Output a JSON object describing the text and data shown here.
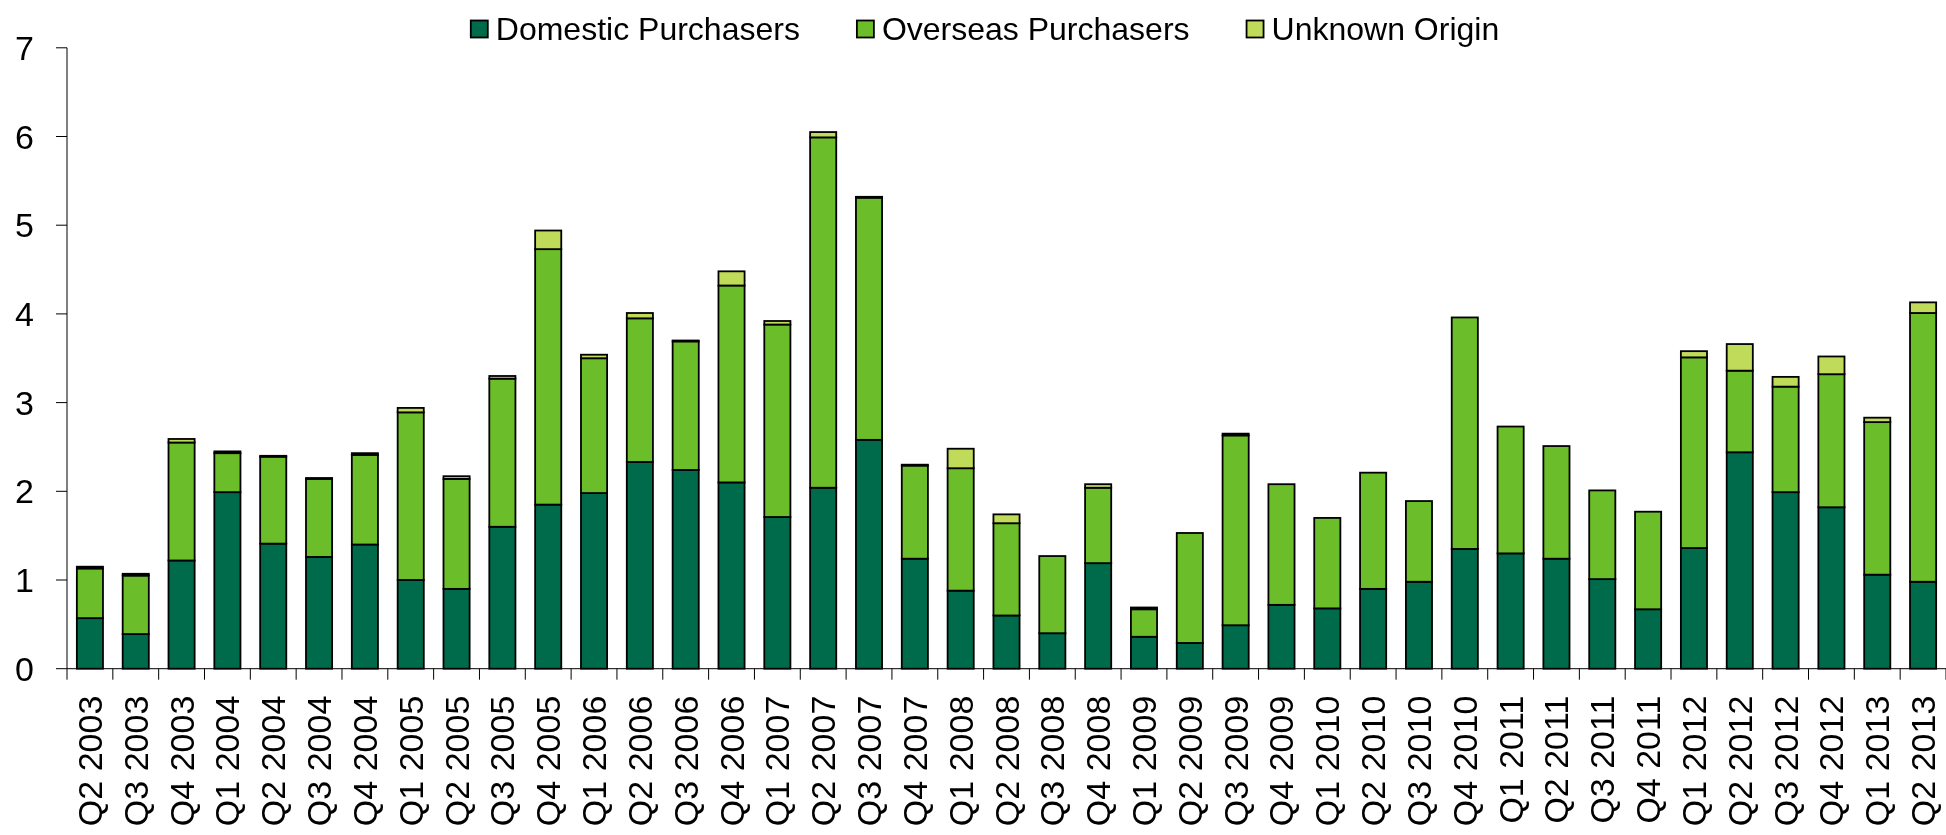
{
  "chart_data": {
    "type": "bar",
    "stacked": true,
    "legend": "top",
    "categories": [
      "Q2 2003",
      "Q3 2003",
      "Q4 2003",
      "Q1 2004",
      "Q2 2004",
      "Q3 2004",
      "Q4 2004",
      "Q1 2005",
      "Q2 2005",
      "Q3 2005",
      "Q4 2005",
      "Q1 2006",
      "Q2 2006",
      "Q3 2006",
      "Q4 2006",
      "Q1 2007",
      "Q2 2007",
      "Q3 2007",
      "Q4 2007",
      "Q1 2008",
      "Q2 2008",
      "Q3 2008",
      "Q4 2008",
      "Q1 2009",
      "Q2 2009",
      "Q3 2009",
      "Q4 2009",
      "Q1 2010",
      "Q2 2010",
      "Q3 2010",
      "Q4 2010",
      "Q1 2011",
      "Q2 2011",
      "Q3 2011",
      "Q4 2011",
      "Q1 2012",
      "Q2 2012",
      "Q3 2012",
      "Q4 2012",
      "Q1 2013",
      "Q2 2013"
    ],
    "series": [
      {
        "name": "Domestic Purchasers",
        "color": "#006b4a",
        "values": [
          0.57,
          0.39,
          1.22,
          1.99,
          1.41,
          1.26,
          1.4,
          1.0,
          0.9,
          1.6,
          1.85,
          1.98,
          2.33,
          2.24,
          2.1,
          1.71,
          2.04,
          2.58,
          1.24,
          0.88,
          0.6,
          0.4,
          1.19,
          0.36,
          0.29,
          0.49,
          0.72,
          0.68,
          0.9,
          0.98,
          1.35,
          1.3,
          1.24,
          1.01,
          0.67,
          1.36,
          2.44,
          1.99,
          1.82,
          1.06,
          0.98
        ]
      },
      {
        "name": "Overseas Purchasers",
        "color": "#6bbe29",
        "values": [
          0.56,
          0.66,
          1.33,
          0.44,
          0.98,
          0.88,
          1.01,
          1.89,
          1.24,
          1.67,
          2.88,
          1.52,
          1.62,
          1.45,
          2.22,
          2.17,
          3.95,
          2.73,
          1.05,
          1.38,
          1.04,
          0.87,
          0.85,
          0.31,
          1.24,
          2.14,
          1.36,
          1.02,
          1.31,
          0.91,
          2.61,
          1.43,
          1.27,
          1.0,
          1.1,
          2.15,
          0.92,
          1.19,
          1.5,
          1.72,
          3.03
        ]
      },
      {
        "name": "Unknown Origin",
        "color": "#c0da5a",
        "values": [
          0.02,
          0.02,
          0.04,
          0.02,
          0.01,
          0.01,
          0.02,
          0.05,
          0.03,
          0.03,
          0.21,
          0.04,
          0.06,
          0.01,
          0.16,
          0.04,
          0.06,
          0.01,
          0.01,
          0.22,
          0.1,
          0,
          0.04,
          0.02,
          0,
          0.02,
          0,
          0,
          0,
          0,
          0,
          0,
          0,
          0,
          0,
          0.07,
          0.3,
          0.11,
          0.2,
          0.05,
          0.12
        ]
      }
    ],
    "ylim": [
      0,
      7
    ],
    "yticks": [
      0,
      1,
      2,
      3,
      4,
      5,
      6,
      7
    ]
  }
}
